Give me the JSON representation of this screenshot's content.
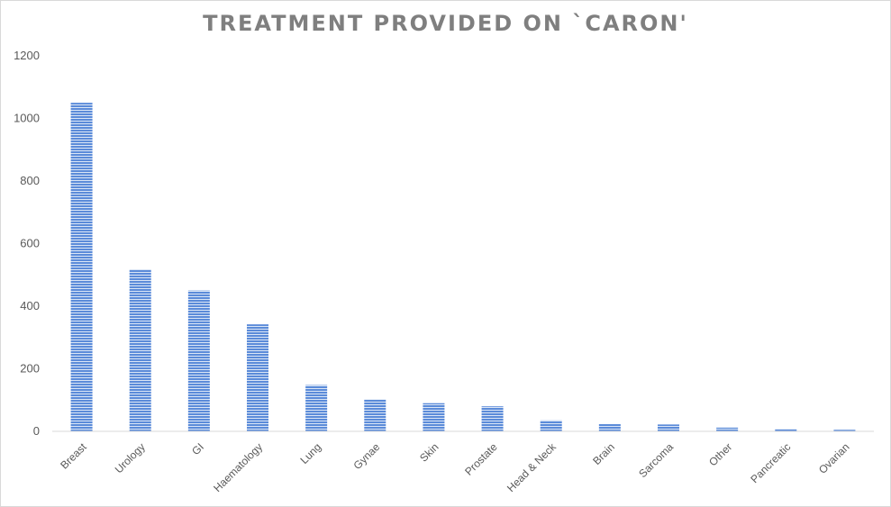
{
  "chart_data": {
    "type": "bar",
    "title": "TREATMENT PROVIDED ON `CARON'",
    "xlabel": "",
    "ylabel": "",
    "categories": [
      "Breast",
      "Urology",
      "GI",
      "Haematology",
      "Lung",
      "Gynae",
      "Skin",
      "Prostate",
      "Head & Neck",
      "Brain",
      "Sarcoma",
      "Other",
      "Pancreatic",
      "Ovarian"
    ],
    "values": [
      1050,
      518,
      450,
      342,
      148,
      102,
      90,
      80,
      35,
      23,
      22,
      12,
      8,
      5
    ],
    "ylim": [
      0,
      1200
    ],
    "yticks": [
      0,
      200,
      400,
      600,
      800,
      1000,
      1200
    ],
    "grid": false,
    "legend": "none",
    "colors": {
      "bar": "#5b8bd9",
      "bar_stripe": "#dbe6f6",
      "axis": "#d9d9d9",
      "title": "#7f7f7f",
      "labels": "#595959"
    }
  }
}
